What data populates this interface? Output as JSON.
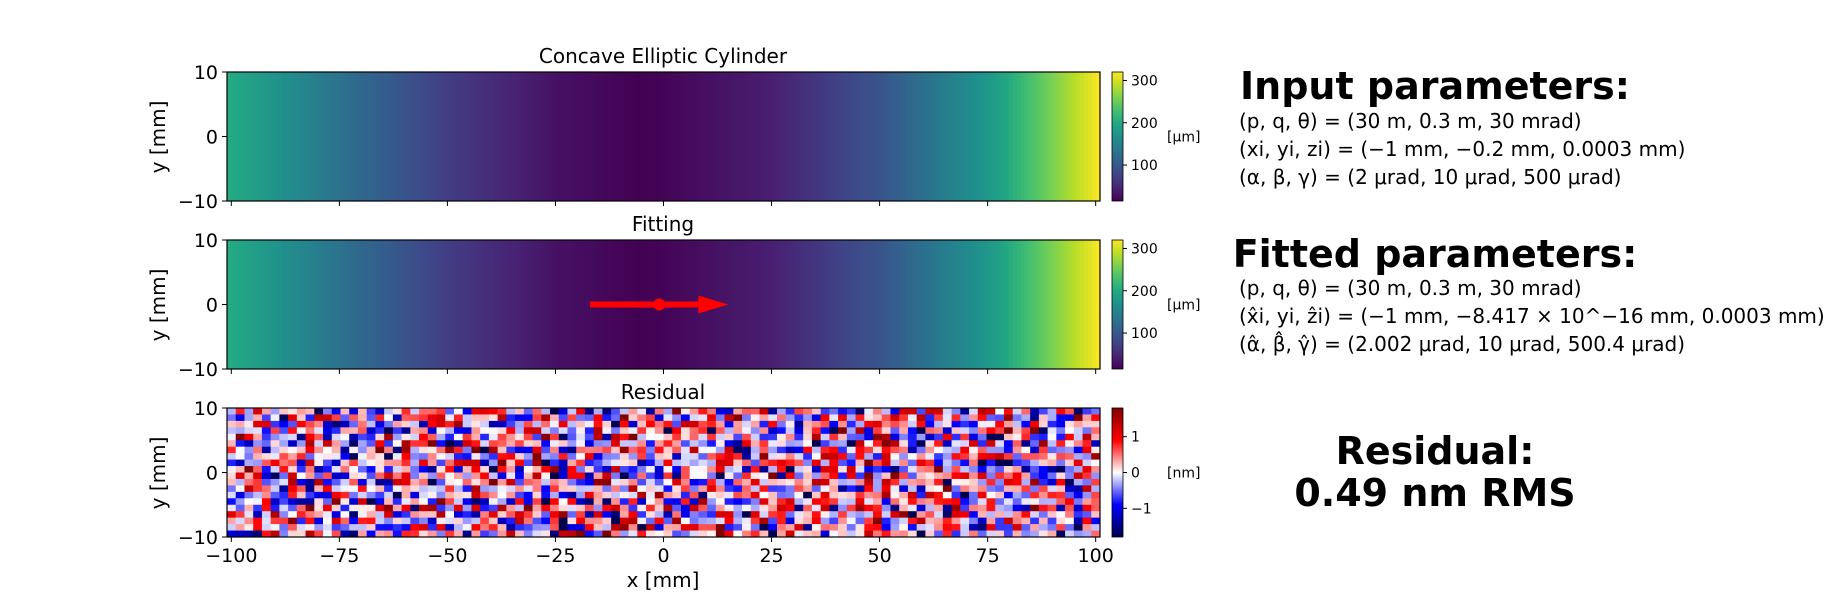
{
  "chart_data": [
    {
      "type": "heatmap",
      "title": "Concave Elliptic Cylinder",
      "xlabel": "",
      "ylabel": "y [mm]",
      "xlim": [
        -101,
        101
      ],
      "ylim": [
        -10,
        10
      ],
      "x_ticks": [
        "-100",
        "-75",
        "-50",
        "-25",
        "0",
        "25",
        "50",
        "75",
        "100"
      ],
      "x_ticks_visible": false,
      "y_ticks": [
        "−10",
        "0",
        "10"
      ],
      "y_tick_values": [
        -10,
        0,
        10
      ],
      "colormap": "viridis",
      "profile_x": [
        -101,
        -75,
        -50,
        -25,
        -6,
        0,
        25,
        50,
        75,
        101
      ],
      "profile_z": [
        205,
        130,
        70,
        30,
        15,
        18,
        42,
        95,
        175,
        320
      ],
      "colorbar": {
        "label": "[µm]",
        "vmin": 15,
        "vmax": 320,
        "ticks": [
          100,
          200,
          300
        ],
        "tick_labels": [
          "100",
          "200",
          "300"
        ]
      }
    },
    {
      "type": "heatmap",
      "title": "Fitting",
      "xlabel": "",
      "ylabel": "y [mm]",
      "xlim": [
        -101,
        101
      ],
      "ylim": [
        -10,
        10
      ],
      "x_ticks_visible": false,
      "y_ticks": [
        "−10",
        "0",
        "10"
      ],
      "y_tick_values": [
        -10,
        0,
        10
      ],
      "colormap": "viridis",
      "profile_x": [
        -101,
        -75,
        -50,
        -25,
        -6,
        0,
        25,
        50,
        75,
        101
      ],
      "profile_z": [
        205,
        130,
        70,
        30,
        15,
        18,
        42,
        95,
        175,
        320
      ],
      "colorbar": {
        "label": "[µm]",
        "vmin": 15,
        "vmax": 320,
        "ticks": [
          100,
          200,
          300
        ],
        "tick_labels": [
          "100",
          "200",
          "300"
        ]
      },
      "marker": {
        "x": -1,
        "y": 0,
        "color": "#ff0000"
      },
      "arrow": {
        "x_start": -17,
        "x_end": 15,
        "y": 0,
        "color": "#ff0000"
      }
    },
    {
      "type": "heatmap",
      "title": "Residual",
      "xlabel": "x [mm]",
      "ylabel": "y [mm]",
      "xlim": [
        -101,
        101
      ],
      "ylim": [
        -10,
        10
      ],
      "x_ticks": [
        "−100",
        "−75",
        "−50",
        "−25",
        "0",
        "25",
        "50",
        "75",
        "100"
      ],
      "x_tick_values": [
        -100,
        -75,
        -50,
        -25,
        0,
        25,
        50,
        75,
        100
      ],
      "y_ticks": [
        "−10",
        "0",
        "10"
      ],
      "y_tick_values": [
        -10,
        0,
        10
      ],
      "colormap": "seismic",
      "grid_cols": 100,
      "grid_rows": 20,
      "noise_rms_nm": 0.49,
      "colorbar": {
        "label": "[nm]",
        "vmin": -1.8,
        "vmax": 1.8,
        "ticks": [
          -1,
          0,
          1
        ],
        "tick_labels": [
          "−1",
          "0",
          "1"
        ]
      }
    }
  ],
  "input_params": {
    "title": "Input parameters:",
    "line1": "(p, q, θ) = (30 m, 0.3 m, 30 mrad)",
    "line2": "(xi, yi, zi) = (−1 mm, −0.2 mm, 0.0003 mm)",
    "line3": "(α, β, γ) = (2 μrad, 10 μrad, 500 μrad)"
  },
  "fitted_params": {
    "title": "Fitted parameters:",
    "line1": "(p, q, θ) = (30 m, 0.3 m, 30 mrad)",
    "line2": "(x̂i, yi, ẑi) = (−1 mm, −8.417 × 10^−16 mm, 0.0003 mm)",
    "line3": "(α̂, β̂, γ̂) = (2.002 μrad, 10 μrad, 500.4 μrad)"
  },
  "residual_summary": {
    "title": "Residual:",
    "value": "0.49 nm RMS"
  }
}
